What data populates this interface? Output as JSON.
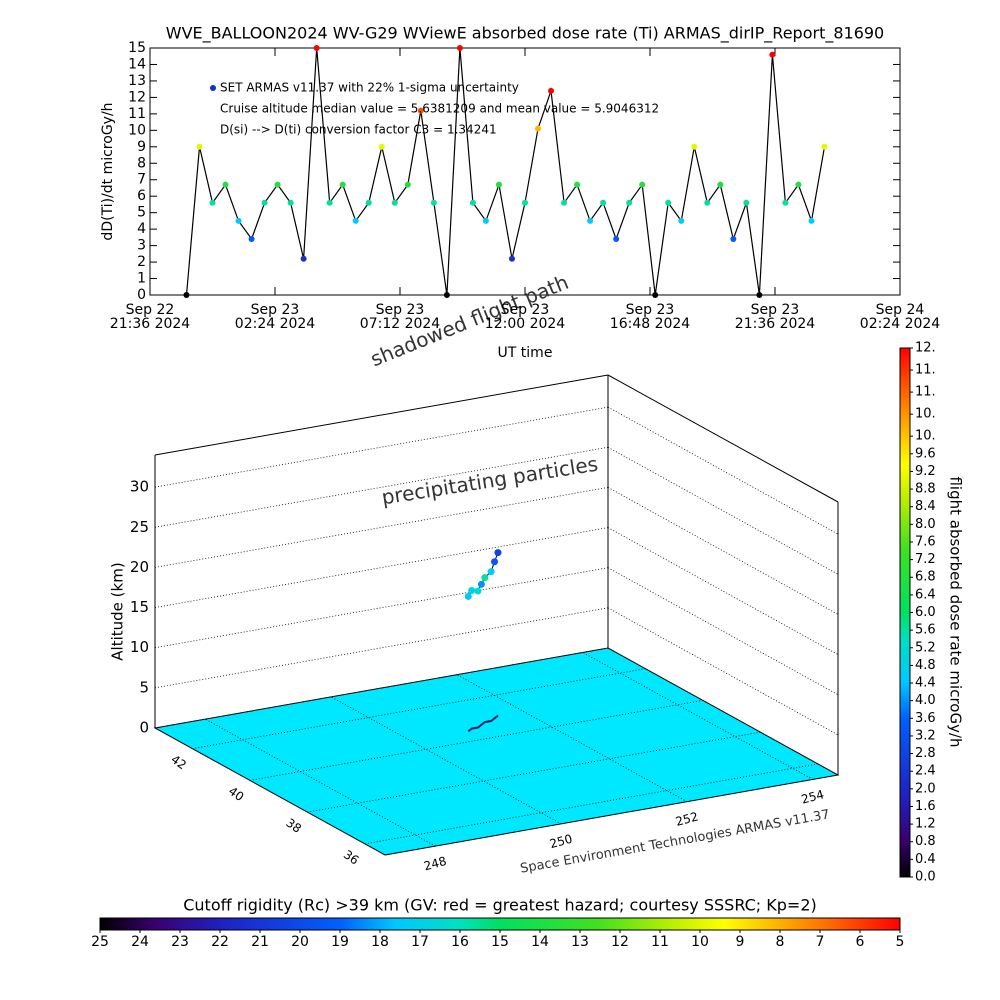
{
  "chart_data": [
    {
      "type": "line",
      "title": "WVE_BALLOON2024 WV-G29 WViewE absorbed dose rate (Ti) ARMAS_dirIP_Report_81690",
      "ylabel": "dD(Ti)/dt microGy/h",
      "xlabel": "UT time",
      "annotations": [
        "SET ARMAS v11.37 with 22% 1-sigma uncertainty",
        "Cruise altitude median value = 5.6381209 and mean value = 5.9046312",
        "D(si) --> D(ti) conversion factor C3 = 1.34241"
      ],
      "legend_marker_color": "#1030d0",
      "color": "#000000",
      "x": [
        "2024-09-22T23:00",
        "2024-09-22T23:30",
        "2024-09-23T00:00",
        "2024-09-23T00:30",
        "2024-09-23T01:00",
        "2024-09-23T01:30",
        "2024-09-23T02:00",
        "2024-09-23T02:30",
        "2024-09-23T03:00",
        "2024-09-23T03:30",
        "2024-09-23T04:00",
        "2024-09-23T04:30",
        "2024-09-23T05:00",
        "2024-09-23T05:30",
        "2024-09-23T06:00",
        "2024-09-23T06:30",
        "2024-09-23T07:00",
        "2024-09-23T07:30",
        "2024-09-23T08:00",
        "2024-09-23T08:30",
        "2024-09-23T09:00",
        "2024-09-23T09:30",
        "2024-09-23T10:00",
        "2024-09-23T10:30",
        "2024-09-23T11:00",
        "2024-09-23T11:30",
        "2024-09-23T12:00",
        "2024-09-23T12:30",
        "2024-09-23T13:00",
        "2024-09-23T13:30",
        "2024-09-23T14:00",
        "2024-09-23T14:30",
        "2024-09-23T15:00",
        "2024-09-23T15:30",
        "2024-09-23T16:00",
        "2024-09-23T16:30",
        "2024-09-23T17:00",
        "2024-09-23T17:30",
        "2024-09-23T18:00",
        "2024-09-23T18:30",
        "2024-09-23T19:00",
        "2024-09-23T19:30",
        "2024-09-23T20:00",
        "2024-09-23T20:30",
        "2024-09-23T21:00",
        "2024-09-23T21:30",
        "2024-09-23T22:00",
        "2024-09-23T22:30",
        "2024-09-23T23:00",
        "2024-09-23T23:30"
      ],
      "values": [
        0,
        9,
        5.6,
        6.7,
        4.5,
        3.4,
        5.6,
        6.7,
        5.6,
        2.2,
        15,
        5.6,
        6.7,
        4.5,
        5.6,
        9,
        5.6,
        6.7,
        11.2,
        5.6,
        0,
        15,
        5.6,
        4.5,
        6.7,
        2.2,
        5.6,
        10.1,
        12.4,
        5.6,
        6.7,
        4.5,
        5.6,
        3.4,
        5.6,
        6.7,
        0,
        5.6,
        4.5,
        9,
        5.6,
        6.7,
        3.4,
        5.6,
        0,
        14.6,
        5.6,
        6.7,
        4.5,
        9
      ],
      "xlim": [
        "2024-09-22T21:36",
        "2024-09-24T02:24"
      ],
      "xticks": [
        {
          "value": "2024-09-22T21:36",
          "label": "Sep 22\n21:36 2024"
        },
        {
          "value": "2024-09-23T02:24",
          "label": "Sep 23\n02:24 2024"
        },
        {
          "value": "2024-09-23T07:12",
          "label": "Sep 23\n07:12 2024"
        },
        {
          "value": "2024-09-23T12:00",
          "label": "Sep 23\n12:00 2024"
        },
        {
          "value": "2024-09-23T16:48",
          "label": "Sep 23\n16:48 2024"
        },
        {
          "value": "2024-09-23T21:36",
          "label": "Sep 23\n21:36 2024"
        },
        {
          "value": "2024-09-24T02:24",
          "label": "Sep 24\n02:24 2024"
        }
      ],
      "ylim": [
        0,
        15
      ],
      "yticks": [
        0,
        1,
        2,
        3,
        4,
        5,
        6,
        7,
        8,
        9,
        10,
        11,
        12,
        13,
        14,
        15
      ]
    },
    {
      "type": "scatter3d",
      "zlabel": "Altitude (km)",
      "annotations": [
        "precipitating particles",
        "shadowed flight path",
        "Space Environment Technologies ARMAS v11.37"
      ],
      "floor_color": "#00e8ff",
      "x": [
        250.9,
        251.0,
        251.1,
        251.2,
        251.3,
        251.4,
        251.5,
        251.6
      ],
      "y": [
        40.5,
        40.6,
        40.6,
        40.7,
        40.8,
        40.8,
        40.9,
        41.0
      ],
      "z": [
        16.8,
        17.2,
        17.0,
        17.5,
        18.0,
        18.6,
        19.5,
        20.3
      ],
      "values": [
        4.4,
        4.8,
        5.2,
        4.0,
        5.6,
        4.6,
        3.4,
        2.8
      ],
      "xlim": [
        247.2,
        254.4
      ],
      "xticks": [
        248,
        250,
        252,
        254
      ],
      "ylim": [
        35.3,
        43.3
      ],
      "yticks": [
        36,
        38,
        40,
        42
      ],
      "zlim": [
        0,
        34
      ],
      "zticks": [
        0,
        5,
        10,
        15,
        20,
        25,
        30
      ]
    },
    {
      "type": "colorbar",
      "label": "flight absorbed dose rate microGy/h",
      "ylim": [
        0,
        12
      ],
      "yticks": [
        {
          "value": 0,
          "label": "0.0"
        },
        0.4,
        0.8,
        1.2,
        1.6,
        {
          "value": 2,
          "label": "2.0"
        },
        2.4,
        2.8,
        3.2,
        3.6,
        {
          "value": 4,
          "label": "4.0"
        },
        4.4,
        4.8,
        5.2,
        5.6,
        {
          "value": 6,
          "label": "6.0"
        },
        6.4,
        6.8,
        7.2,
        7.6,
        {
          "value": 8,
          "label": "8.0"
        },
        8.4,
        8.8,
        9.2,
        9.6,
        {
          "value": 10,
          "label": "10."
        },
        {
          "value": 10.5,
          "label": "10."
        },
        {
          "value": 11,
          "label": "11."
        },
        {
          "value": 11.5,
          "label": "11."
        },
        {
          "value": 12,
          "label": "12."
        }
      ]
    },
    {
      "type": "colorbar",
      "title": "Cutoff rigidity (Rc) >39 km (GV: red = greatest hazard; courtesy SSSRC; Kp=2)",
      "xlim": [
        25,
        5
      ],
      "xticks": [
        25,
        24,
        23,
        22,
        21,
        20,
        19,
        18,
        17,
        16,
        15,
        14,
        13,
        12,
        11,
        10,
        9,
        8,
        7,
        6,
        5
      ]
    }
  ]
}
